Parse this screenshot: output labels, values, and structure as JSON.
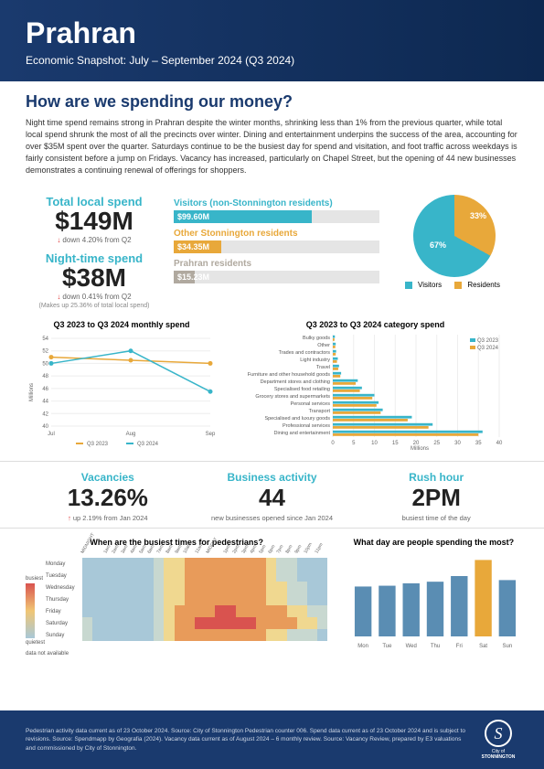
{
  "header": {
    "title": "Prahran",
    "subtitle": "Economic Snapshot: July – September 2024 (Q3 2024)"
  },
  "question": "How are we spending our money?",
  "intro": "Night time spend remains strong in Prahran despite the winter months, shrinking less than 1% from the previous quarter, while total local spend shrunk the most of all the precincts over winter. Dining and entertainment underpins the success of the area, accounting for over $35M spent over the quarter. Saturdays continue to be the busiest day for spend and visitation, and foot traffic across weekdays is fairly consistent before a jump on Fridays. Vacancy has increased, particularly on Chapel Street, but the opening of 44 new businesses demonstrates a continuing renewal of offerings for shoppers.",
  "kpis": {
    "total": {
      "label": "Total local spend",
      "value": "$149M",
      "sub": "down 4.20% from Q2"
    },
    "night": {
      "label": "Night-time spend",
      "value": "$38M",
      "sub": "down 0.41% from Q2",
      "note": "(Makes up 25.36% of total local spend)"
    }
  },
  "bars": {
    "visitors": {
      "label": "Visitors (non-Stonnington residents)",
      "value": "$99.60M",
      "pct": 67,
      "color": "#38b5c9"
    },
    "other": {
      "label": "Other Stonnington residents",
      "value": "$34.35M",
      "pct": 23,
      "color": "#e8a83a"
    },
    "prahran": {
      "label": "Prahran residents",
      "value": "$15.23M",
      "pct": 10,
      "color": "#b0a99f"
    }
  },
  "pie": {
    "visitors": 67,
    "residents": 33,
    "colors": {
      "visitors": "#38b5c9",
      "residents": "#e8a83a"
    },
    "legend": {
      "a": "Visitors",
      "b": "Residents"
    }
  },
  "linechart": {
    "title": "Q3 2023 to Q3 2024 monthly spend",
    "ylabel": "Millions",
    "ylim": [
      40,
      54
    ],
    "yticks": [
      40,
      42,
      44,
      46,
      48,
      50,
      52,
      54
    ],
    "xlabels": [
      "Jul",
      "Aug",
      "Sep"
    ],
    "series": [
      {
        "name": "Q3 2023",
        "color": "#e8a83a",
        "values": [
          51,
          50.5,
          50
        ]
      },
      {
        "name": "Q3 2024",
        "color": "#38b5c9",
        "values": [
          50,
          52,
          45.5
        ]
      }
    ]
  },
  "catchart": {
    "title": "Q3 2023 to Q3 2024 category spend",
    "xlabel": "Millions",
    "xlim": [
      0,
      40
    ],
    "xticks": [
      0,
      5,
      10,
      15,
      20,
      25,
      30,
      35,
      40
    ],
    "categories": [
      "Bulky goods",
      "Other",
      "Trades and contractors",
      "Light industry",
      "Travel",
      "Furniture and other household goods",
      "Department stores and clothing",
      "Specialised food retailing",
      "Grocery stores and supermarkets",
      "Personal services",
      "Transport",
      "Specialised and luxury goods",
      "Professional services",
      "Dining and entertainment"
    ],
    "s2023": {
      "color": "#38b5c9",
      "values": [
        0.5,
        0.7,
        0.8,
        1.2,
        1.5,
        2,
        6,
        7,
        10,
        11,
        12,
        19,
        24,
        36
      ]
    },
    "s2024": {
      "color": "#e8a83a",
      "values": [
        0.4,
        0.6,
        0.7,
        1.0,
        1.3,
        1.8,
        5.5,
        6.5,
        9.5,
        10.5,
        11.5,
        18,
        23,
        35
      ]
    },
    "legend": {
      "a": "Q3 2023",
      "b": "Q3 2024"
    }
  },
  "stats": {
    "vacancies": {
      "label": "Vacancies",
      "value": "13.26%",
      "sub": "up 2.19% from Jan 2024"
    },
    "activity": {
      "label": "Business activity",
      "value": "44",
      "sub": "new businesses opened since Jan 2024"
    },
    "rush": {
      "label": "Rush hour",
      "value": "2PM",
      "sub": "busiest time of the day"
    }
  },
  "heatmap": {
    "title": "When are the busiest times for pedestrians?",
    "days": [
      "Monday",
      "Tuesday",
      "Wednesday",
      "Thursday",
      "Friday",
      "Saturday",
      "Sunday"
    ],
    "legend": {
      "busiest": "busiest",
      "quietest": "quietest",
      "na": "data not available"
    },
    "palette": {
      "hot": "#d9534f",
      "warm": "#e89b5a",
      "mid": "#f0d890",
      "cool": "#c8d8d0",
      "cold": "#a8c8d8",
      "na": "#e0e0e0"
    },
    "hours": [
      "MIDNIGHT",
      "1am",
      "2am",
      "3am",
      "4am",
      "5am",
      "6am",
      "7am",
      "8am",
      "9am",
      "10am",
      "11am",
      "MIDDAY",
      "1pm",
      "2pm",
      "3pm",
      "4pm",
      "5pm",
      "6pm",
      "7pm",
      "8pm",
      "9pm",
      "10pm",
      "11pm"
    ],
    "data": [
      [
        0,
        0,
        0,
        0,
        0,
        0,
        0,
        1,
        2,
        2,
        3,
        3,
        4,
        4,
        4,
        3,
        3,
        3,
        2,
        1,
        1,
        0,
        0,
        0
      ],
      [
        0,
        0,
        0,
        0,
        0,
        0,
        0,
        1,
        2,
        2,
        3,
        3,
        4,
        4,
        4,
        3,
        3,
        3,
        2,
        1,
        1,
        0,
        0,
        0
      ],
      [
        0,
        0,
        0,
        0,
        0,
        0,
        0,
        1,
        2,
        2,
        3,
        3,
        4,
        4,
        4,
        3,
        3,
        3,
        2,
        2,
        1,
        1,
        0,
        0
      ],
      [
        0,
        0,
        0,
        0,
        0,
        0,
        0,
        1,
        2,
        2,
        3,
        3,
        4,
        4,
        4,
        3,
        3,
        3,
        2,
        2,
        1,
        1,
        0,
        0
      ],
      [
        0,
        0,
        0,
        0,
        0,
        0,
        0,
        1,
        2,
        3,
        3,
        4,
        4,
        5,
        5,
        4,
        4,
        4,
        3,
        3,
        2,
        2,
        1,
        1
      ],
      [
        1,
        0,
        0,
        0,
        0,
        0,
        0,
        1,
        2,
        3,
        4,
        5,
        5,
        5,
        5,
        5,
        5,
        4,
        4,
        3,
        3,
        2,
        2,
        1
      ],
      [
        1,
        0,
        0,
        0,
        0,
        0,
        0,
        1,
        2,
        3,
        3,
        4,
        4,
        4,
        4,
        4,
        3,
        3,
        2,
        2,
        1,
        1,
        1,
        0
      ]
    ]
  },
  "daychart": {
    "title": "What day are people spending the most?",
    "days": [
      "Mon",
      "Tue",
      "Wed",
      "Thu",
      "Fri",
      "Sat",
      "Sun"
    ],
    "values": [
      62,
      63,
      66,
      68,
      75,
      95,
      70
    ],
    "colors": [
      "#5a8db3",
      "#5a8db3",
      "#5a8db3",
      "#5a8db3",
      "#5a8db3",
      "#e8a83a",
      "#5a8db3"
    ],
    "max": 100
  },
  "footer": {
    "text": "Pedestrian activity data current as of 23 October 2024. Source: City of Stonnington Pedestrian counter 006. Spend data current as of 23 October 2024 and is subject to revisions. Source: Spendmapp by Geografia (2024). Vacancy data current as of August 2024 – 6 monthly review. Source: Vacancy Review, prepared by E3 valuations and commissioned by City of Stonnington.",
    "logo": {
      "glyph": "S",
      "line1": "City of",
      "line2": "STONNINGTON"
    }
  }
}
